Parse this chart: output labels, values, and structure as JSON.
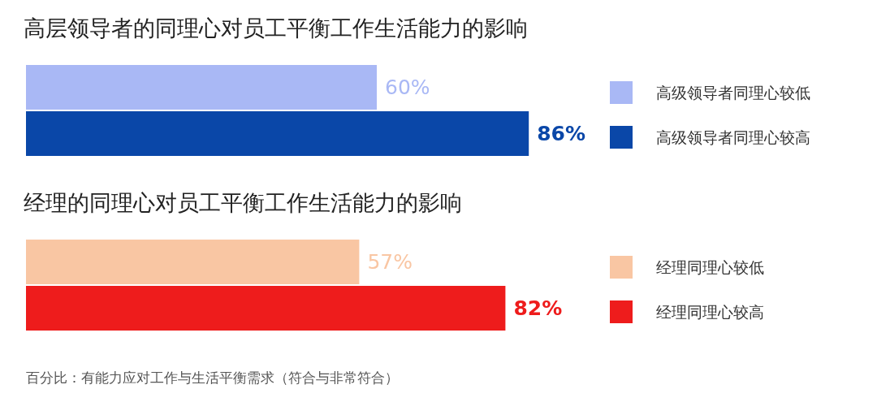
{
  "chart_data": [
    {
      "type": "bar",
      "orientation": "horizontal",
      "title": "高层领导者的同理心对员工平衡工作生活能力的影响",
      "categories": [
        null
      ],
      "legend": "right",
      "series": [
        {
          "name": "高级领导者同理心较低",
          "color": "#a9b8f5",
          "values": [
            60
          ],
          "value_labels": [
            "60%"
          ]
        },
        {
          "name": "高级领导者同理心较高",
          "color": "#0a47a8",
          "values": [
            86
          ],
          "value_labels": [
            "86%"
          ]
        }
      ]
    },
    {
      "type": "bar",
      "orientation": "horizontal",
      "title": "经理的同理心对员工平衡工作生活能力的影响",
      "categories": [
        null
      ],
      "legend": "right",
      "series": [
        {
          "name": "经理同理心较低",
          "color": "#f9c6a3",
          "values": [
            57
          ],
          "value_labels": [
            "57%"
          ]
        },
        {
          "name": "经理同理心较高",
          "color": "#ee1c1c",
          "values": [
            82
          ],
          "value_labels": [
            "82%"
          ]
        }
      ],
      "annotations": [
        "百分比：有能力应对工作与生活平衡需求（符合与非常符合）"
      ]
    }
  ]
}
